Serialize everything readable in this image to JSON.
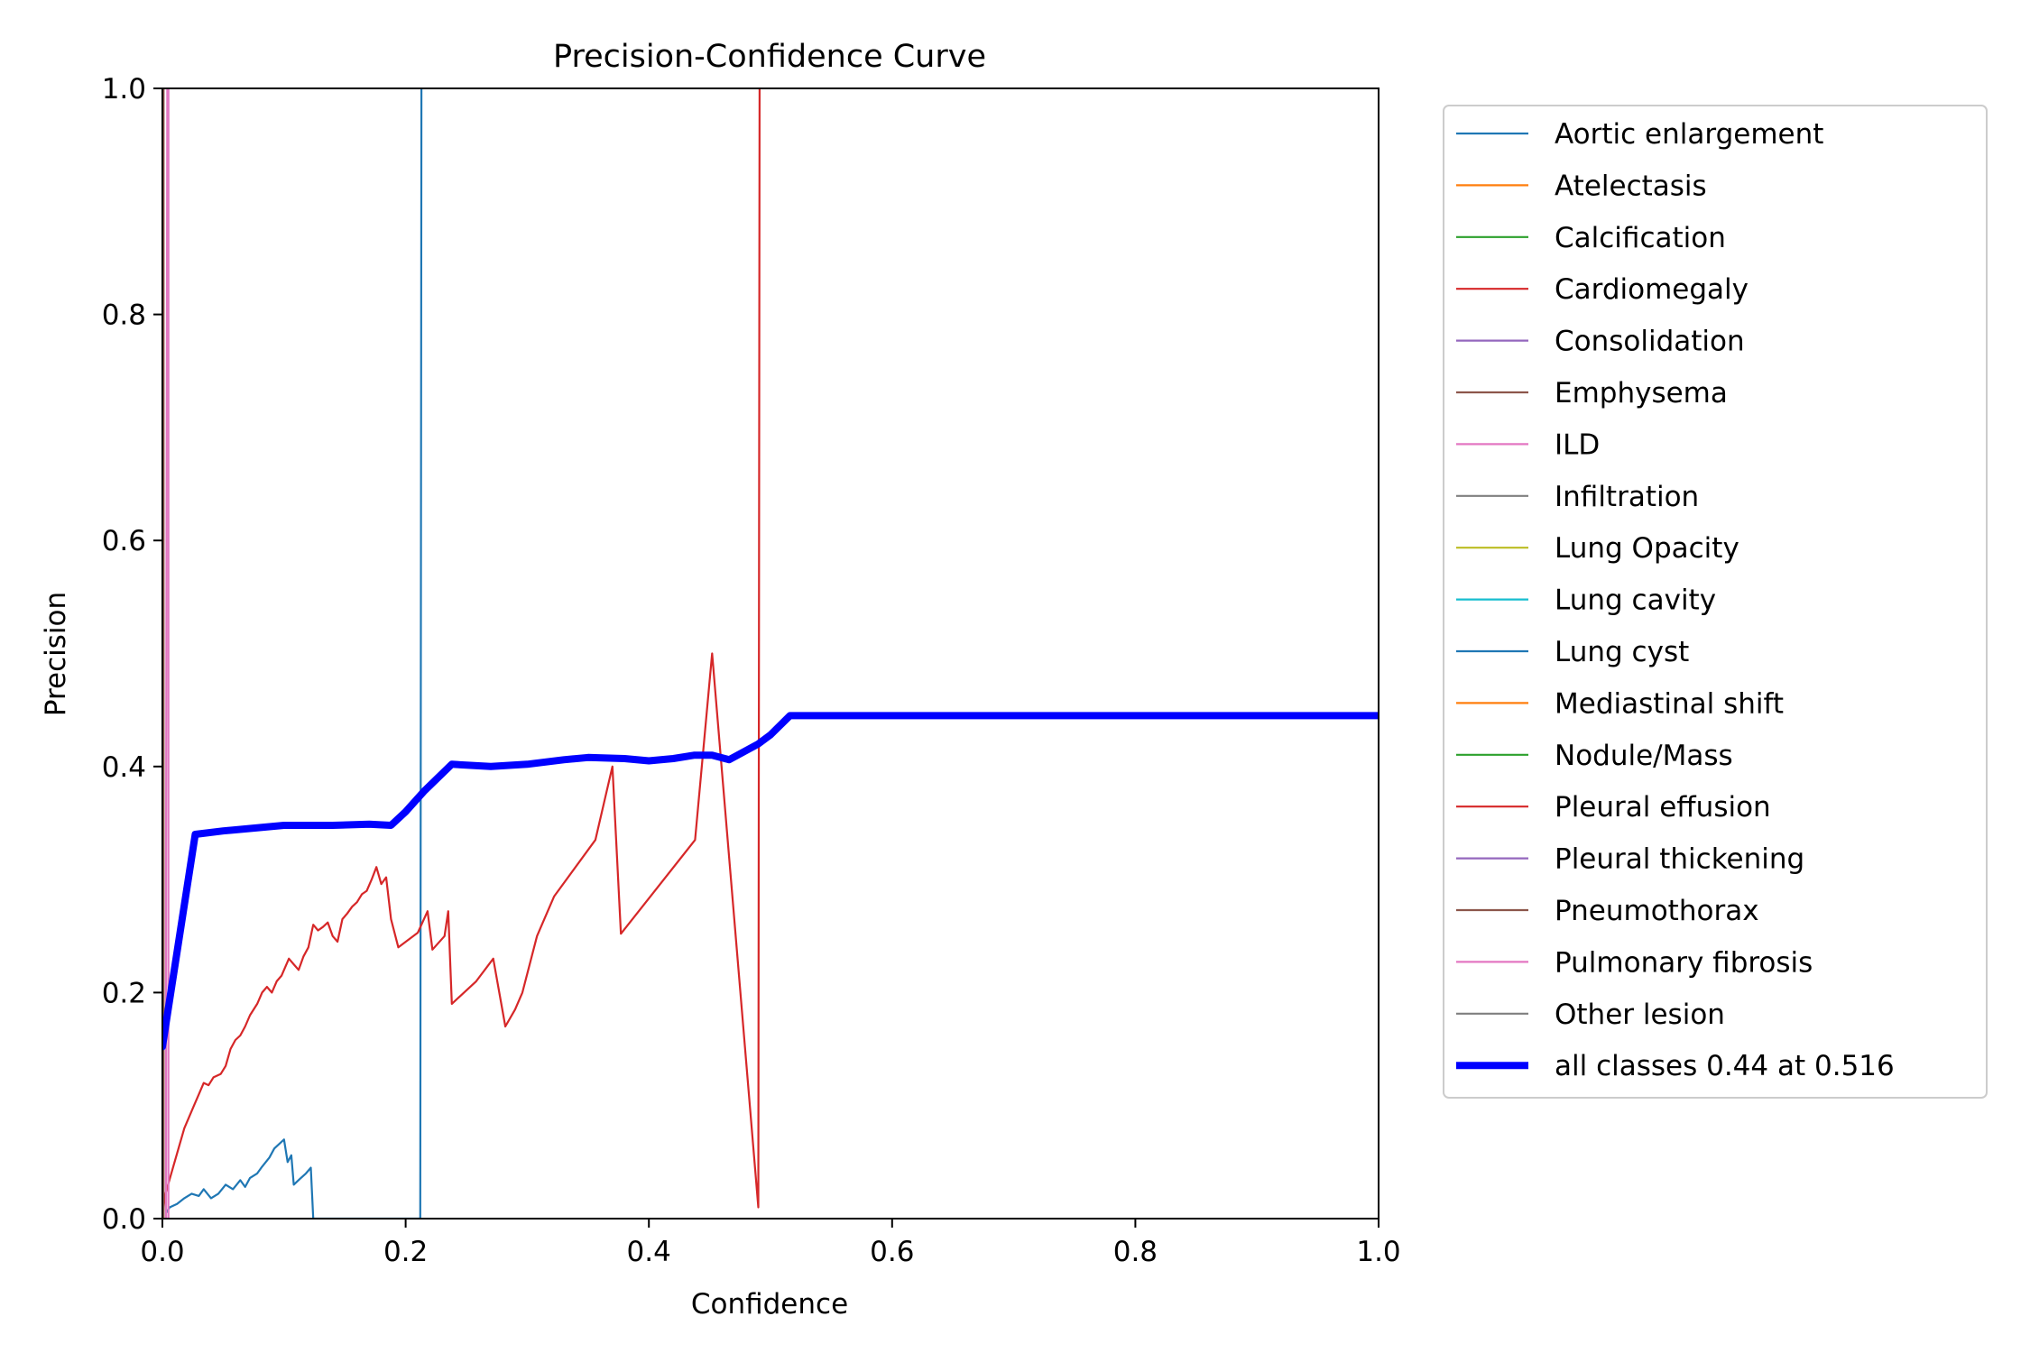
{
  "chart_data": {
    "type": "line",
    "title": "Precision-Confidence Curve",
    "xlabel": "Confidence",
    "ylabel": "Precision",
    "xlim": [
      0,
      1
    ],
    "ylim": [
      0,
      1
    ],
    "xticks": [
      {
        "value": 0.0,
        "label": "0.0"
      },
      {
        "value": 0.2,
        "label": "0.2"
      },
      {
        "value": 0.4,
        "label": "0.4"
      },
      {
        "value": 0.6,
        "label": "0.6"
      },
      {
        "value": 0.8,
        "label": "0.8"
      },
      {
        "value": 1.0,
        "label": "1.0"
      }
    ],
    "yticks": [
      {
        "value": 0.0,
        "label": "0.0"
      },
      {
        "value": 0.2,
        "label": "0.2"
      },
      {
        "value": 0.4,
        "label": "0.4"
      },
      {
        "value": 0.6,
        "label": "0.6"
      },
      {
        "value": 0.8,
        "label": "0.8"
      },
      {
        "value": 1.0,
        "label": "1.0"
      }
    ],
    "grid": false,
    "legend_position": "outside-right",
    "series": [
      {
        "name": "Aortic enlargement",
        "color": "#1f77b4",
        "width": 1,
        "points": [
          [
            0.003,
            0.005
          ],
          [
            0.006,
            0.01
          ],
          [
            0.012,
            0.013
          ],
          [
            0.018,
            0.018
          ],
          [
            0.024,
            0.022
          ],
          [
            0.03,
            0.02
          ],
          [
            0.034,
            0.026
          ],
          [
            0.04,
            0.018
          ],
          [
            0.046,
            0.022
          ],
          [
            0.052,
            0.03
          ],
          [
            0.058,
            0.026
          ],
          [
            0.064,
            0.034
          ],
          [
            0.068,
            0.028
          ],
          [
            0.072,
            0.036
          ],
          [
            0.078,
            0.04
          ],
          [
            0.082,
            0.046
          ],
          [
            0.088,
            0.054
          ],
          [
            0.092,
            0.062
          ],
          [
            0.096,
            0.066
          ],
          [
            0.1,
            0.07
          ],
          [
            0.103,
            0.05
          ],
          [
            0.106,
            0.056
          ],
          [
            0.108,
            0.03
          ],
          [
            0.113,
            0.035
          ],
          [
            0.118,
            0.04
          ],
          [
            0.122,
            0.045
          ],
          [
            0.124,
            0.0
          ],
          [
            0.212,
            0.0
          ],
          [
            0.213,
            1.0
          ]
        ]
      },
      {
        "name": "Atelectasis",
        "color": "#ff7f0e",
        "width": 1,
        "points": []
      },
      {
        "name": "Calcification",
        "color": "#2ca02c",
        "width": 1,
        "points": []
      },
      {
        "name": "Cardiomegaly",
        "color": "#d62728",
        "width": 1,
        "points": [
          [
            0.0,
            0.0
          ],
          [
            0.002,
            0.02
          ],
          [
            0.01,
            0.05
          ],
          [
            0.018,
            0.08
          ],
          [
            0.026,
            0.1
          ],
          [
            0.03,
            0.11
          ],
          [
            0.034,
            0.12
          ],
          [
            0.038,
            0.118
          ],
          [
            0.042,
            0.125
          ],
          [
            0.048,
            0.128
          ],
          [
            0.052,
            0.135
          ],
          [
            0.056,
            0.15
          ],
          [
            0.06,
            0.158
          ],
          [
            0.064,
            0.162
          ],
          [
            0.068,
            0.17
          ],
          [
            0.072,
            0.18
          ],
          [
            0.078,
            0.19
          ],
          [
            0.082,
            0.2
          ],
          [
            0.086,
            0.205
          ],
          [
            0.09,
            0.2
          ],
          [
            0.094,
            0.21
          ],
          [
            0.098,
            0.215
          ],
          [
            0.1,
            0.22
          ],
          [
            0.104,
            0.23
          ],
          [
            0.108,
            0.225
          ],
          [
            0.112,
            0.22
          ],
          [
            0.116,
            0.232
          ],
          [
            0.12,
            0.24
          ],
          [
            0.124,
            0.26
          ],
          [
            0.128,
            0.255
          ],
          [
            0.132,
            0.258
          ],
          [
            0.136,
            0.262
          ],
          [
            0.14,
            0.25
          ],
          [
            0.144,
            0.245
          ],
          [
            0.148,
            0.265
          ],
          [
            0.152,
            0.27
          ],
          [
            0.156,
            0.276
          ],
          [
            0.16,
            0.28
          ],
          [
            0.164,
            0.287
          ],
          [
            0.168,
            0.29
          ],
          [
            0.172,
            0.3
          ],
          [
            0.176,
            0.311
          ],
          [
            0.18,
            0.296
          ],
          [
            0.184,
            0.302
          ],
          [
            0.188,
            0.265
          ],
          [
            0.194,
            0.24
          ],
          [
            0.21,
            0.253
          ],
          [
            0.218,
            0.272
          ],
          [
            0.222,
            0.238
          ],
          [
            0.232,
            0.25
          ],
          [
            0.235,
            0.272
          ],
          [
            0.238,
            0.19
          ],
          [
            0.258,
            0.21
          ],
          [
            0.272,
            0.23
          ],
          [
            0.282,
            0.17
          ],
          [
            0.29,
            0.185
          ],
          [
            0.296,
            0.2
          ],
          [
            0.308,
            0.25
          ],
          [
            0.322,
            0.285
          ],
          [
            0.356,
            0.335
          ],
          [
            0.37,
            0.4
          ],
          [
            0.377,
            0.252
          ],
          [
            0.438,
            0.335
          ],
          [
            0.452,
            0.5
          ],
          [
            0.49,
            0.01
          ],
          [
            0.491,
            1.0
          ]
        ]
      },
      {
        "name": "Consolidation",
        "color": "#9467bd",
        "width": 1,
        "points": []
      },
      {
        "name": "Emphysema",
        "color": "#8c564b",
        "width": 1,
        "points": [
          [
            0.001,
            0.0
          ],
          [
            0.001,
            1.0
          ]
        ]
      },
      {
        "name": "ILD",
        "color": "#e377c2",
        "width": 1,
        "points": [
          [
            0.003,
            0.0
          ],
          [
            0.003,
            0.3
          ],
          [
            0.004,
            1.0
          ]
        ]
      },
      {
        "name": "Infiltration",
        "color": "#7f7f7f",
        "width": 1,
        "points": []
      },
      {
        "name": "Lung Opacity",
        "color": "#bcbd22",
        "width": 1,
        "points": []
      },
      {
        "name": "Lung cavity",
        "color": "#17becf",
        "width": 1,
        "points": []
      },
      {
        "name": "Lung cyst",
        "color": "#1f77b4",
        "width": 1,
        "points": []
      },
      {
        "name": "Mediastinal shift",
        "color": "#ff7f0e",
        "width": 1,
        "points": []
      },
      {
        "name": "Nodule/Mass",
        "color": "#2ca02c",
        "width": 1,
        "points": []
      },
      {
        "name": "Pleural effusion",
        "color": "#d62728",
        "width": 1,
        "points": []
      },
      {
        "name": "Pleural thickening",
        "color": "#9467bd",
        "width": 1,
        "points": []
      },
      {
        "name": "Pneumothorax",
        "color": "#8c564b",
        "width": 1,
        "points": []
      },
      {
        "name": "Pulmonary fibrosis",
        "color": "#e377c2",
        "width": 1,
        "points": [
          [
            0.005,
            0.0
          ],
          [
            0.005,
            1.0
          ]
        ]
      },
      {
        "name": "Other lesion",
        "color": "#7f7f7f",
        "width": 1,
        "points": []
      },
      {
        "name": "all classes 0.44 at 0.516",
        "color": "#0000ff",
        "width": 3,
        "points": [
          [
            0.0,
            0.152
          ],
          [
            0.027,
            0.34
          ],
          [
            0.05,
            0.343
          ],
          [
            0.08,
            0.346
          ],
          [
            0.1,
            0.348
          ],
          [
            0.14,
            0.348
          ],
          [
            0.17,
            0.349
          ],
          [
            0.188,
            0.348
          ],
          [
            0.2,
            0.36
          ],
          [
            0.215,
            0.378
          ],
          [
            0.238,
            0.402
          ],
          [
            0.27,
            0.4
          ],
          [
            0.3,
            0.402
          ],
          [
            0.33,
            0.406
          ],
          [
            0.35,
            0.408
          ],
          [
            0.38,
            0.407
          ],
          [
            0.4,
            0.405
          ],
          [
            0.42,
            0.407
          ],
          [
            0.437,
            0.41
          ],
          [
            0.452,
            0.41
          ],
          [
            0.466,
            0.406
          ],
          [
            0.49,
            0.42
          ],
          [
            0.5,
            0.428
          ],
          [
            0.516,
            0.445
          ],
          [
            1.0,
            0.445
          ]
        ]
      }
    ]
  }
}
